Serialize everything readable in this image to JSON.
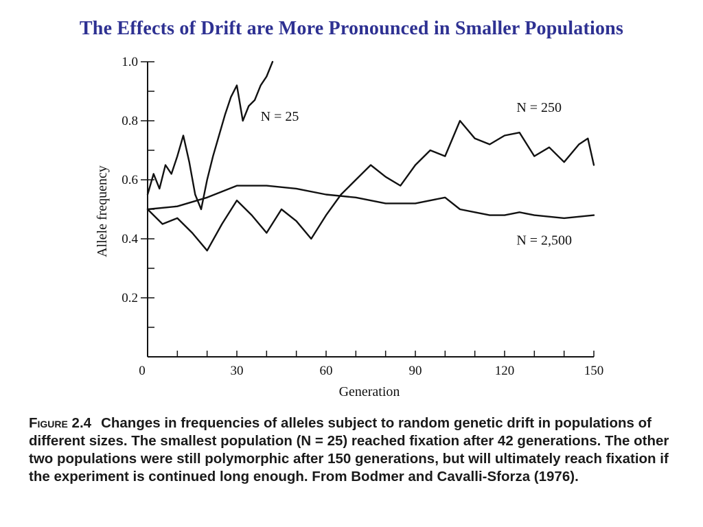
{
  "slide": {
    "title": "The Effects of Drift are More Pronounced in Smaller Populations"
  },
  "caption": {
    "figure_label": "Figure 2.4",
    "text": "Changes in frequencies of alleles subject to random genetic drift in populations of different sizes. The smallest population (N = 25) reached fixation after 42 generations. The other two populations were still polymorphic after 150 generations, but will ultimately reach fixation if the experiment is continued long enough. From Bodmer and Cavalli-Sforza (1976)."
  },
  "colors": {
    "title": "#2e3192",
    "ink": "#111111"
  },
  "chart_data": {
    "type": "line",
    "title": "",
    "xlabel": "Generation",
    "ylabel": "Allele frequency",
    "xlim": [
      0,
      150
    ],
    "ylim": [
      0.0,
      1.0
    ],
    "x_ticks": [
      0,
      30,
      60,
      90,
      120,
      150
    ],
    "x_minor_step": 10,
    "y_ticks": [
      0.2,
      0.4,
      0.6,
      0.8,
      1.0
    ],
    "y_minor_step": 0.1,
    "grid": false,
    "legend": "none (series labelled directly on the plot)",
    "series": [
      {
        "name": "N = 25",
        "x": [
          0,
          2,
          4,
          6,
          8,
          10,
          12,
          14,
          16,
          18,
          20,
          22,
          24,
          26,
          28,
          30,
          32,
          34,
          36,
          38,
          40,
          42
        ],
        "y": [
          0.55,
          0.62,
          0.57,
          0.65,
          0.62,
          0.68,
          0.75,
          0.66,
          0.55,
          0.5,
          0.6,
          0.68,
          0.75,
          0.82,
          0.88,
          0.92,
          0.8,
          0.85,
          0.87,
          0.92,
          0.95,
          1.0
        ]
      },
      {
        "name": "N = 250",
        "x": [
          0,
          5,
          10,
          15,
          20,
          25,
          30,
          35,
          40,
          45,
          50,
          55,
          60,
          65,
          70,
          75,
          80,
          85,
          90,
          95,
          100,
          105,
          110,
          115,
          120,
          125,
          130,
          135,
          140,
          145,
          148,
          150
        ],
        "y": [
          0.5,
          0.45,
          0.47,
          0.42,
          0.36,
          0.45,
          0.53,
          0.48,
          0.42,
          0.5,
          0.46,
          0.4,
          0.48,
          0.55,
          0.6,
          0.65,
          0.61,
          0.58,
          0.65,
          0.7,
          0.68,
          0.8,
          0.74,
          0.72,
          0.75,
          0.76,
          0.68,
          0.71,
          0.66,
          0.72,
          0.74,
          0.65
        ]
      },
      {
        "name": "N = 2,500",
        "x": [
          0,
          10,
          20,
          30,
          40,
          50,
          60,
          70,
          80,
          90,
          100,
          105,
          110,
          115,
          120,
          125,
          130,
          140,
          150
        ],
        "y": [
          0.5,
          0.51,
          0.54,
          0.58,
          0.58,
          0.57,
          0.55,
          0.54,
          0.52,
          0.52,
          0.54,
          0.5,
          0.49,
          0.48,
          0.48,
          0.49,
          0.48,
          0.47,
          0.48
        ]
      }
    ],
    "annotations": [
      {
        "text": "N = 25",
        "x": 38,
        "y": 0.8
      },
      {
        "text": "N = 250",
        "x": 124,
        "y": 0.83
      },
      {
        "text": "N = 2,500",
        "x": 124,
        "y": 0.38
      }
    ]
  }
}
